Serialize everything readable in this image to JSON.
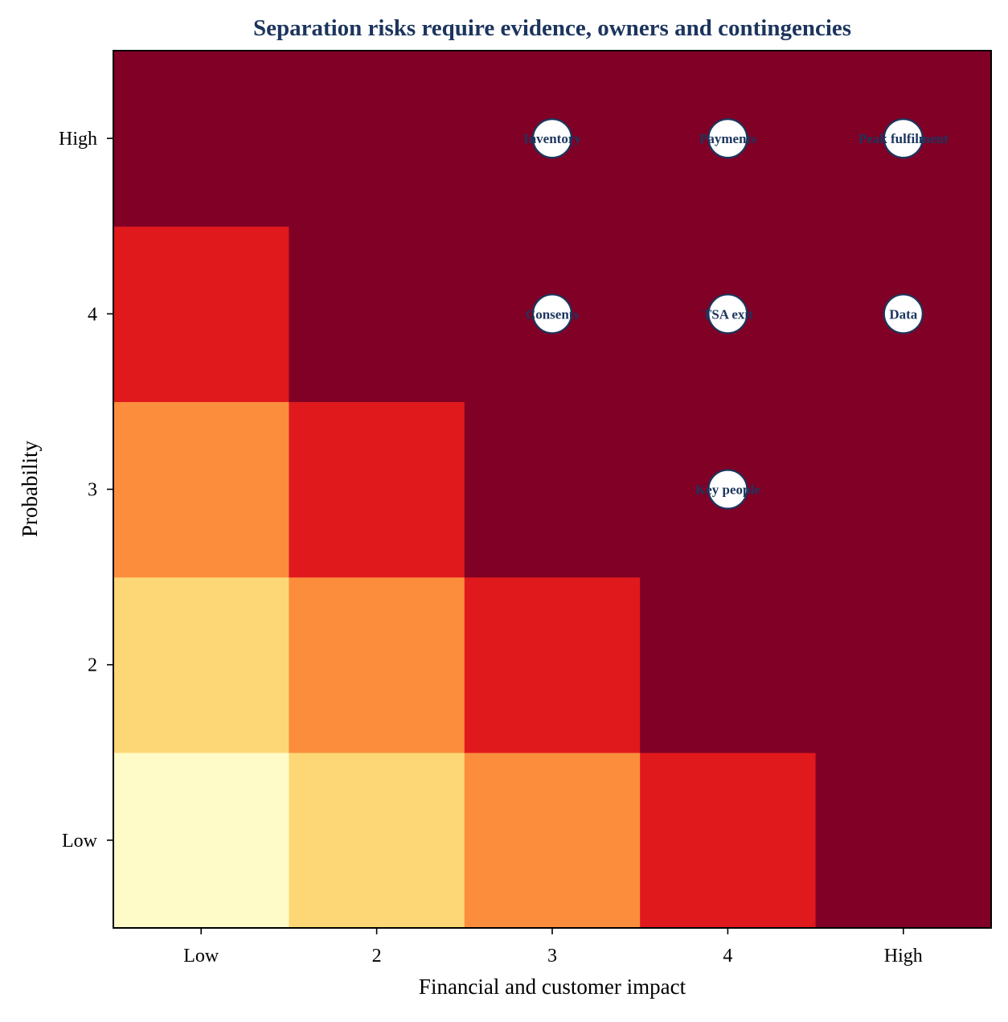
{
  "chart_data": {
    "type": "heatmap",
    "title": "Separation risks require evidence, owners and contingencies",
    "xlabel": "Financial and customer impact",
    "ylabel": "Probability",
    "x_ticks": [
      "Low",
      "2",
      "3",
      "4",
      "High"
    ],
    "y_ticks": [
      "Low",
      "2",
      "3",
      "4",
      "High"
    ],
    "xlim": [
      0.5,
      5.5
    ],
    "ylim": [
      0.5,
      5.5
    ],
    "grid": false,
    "heatmap_rows_bottom_to_top": [
      [
        1,
        2,
        3,
        4,
        5
      ],
      [
        2,
        3,
        4,
        5,
        5
      ],
      [
        3,
        4,
        5,
        5,
        5
      ],
      [
        4,
        5,
        5,
        5,
        5
      ],
      [
        5,
        5,
        5,
        5,
        5
      ]
    ],
    "level_colors": {
      "1": "#fffbc8",
      "2": "#fdd776",
      "3": "#fb8d3d",
      "4": "#e0191d",
      "5": "#800026"
    },
    "risks": [
      {
        "label": "Inventory",
        "impact": 3,
        "probability": 5
      },
      {
        "label": "Payments",
        "impact": 4,
        "probability": 5
      },
      {
        "label": "Peak fulfilment",
        "impact": 5,
        "probability": 5
      },
      {
        "label": "Consents",
        "impact": 3,
        "probability": 4
      },
      {
        "label": "TSA exit",
        "impact": 4,
        "probability": 4
      },
      {
        "label": "Data",
        "impact": 5,
        "probability": 4
      },
      {
        "label": "Key people",
        "impact": 4,
        "probability": 3
      }
    ],
    "colors": {
      "title": "#1c355e",
      "marker_fill": "#ffffff",
      "marker_edge": "#1c355e",
      "marker_label": "#1c355e"
    }
  }
}
